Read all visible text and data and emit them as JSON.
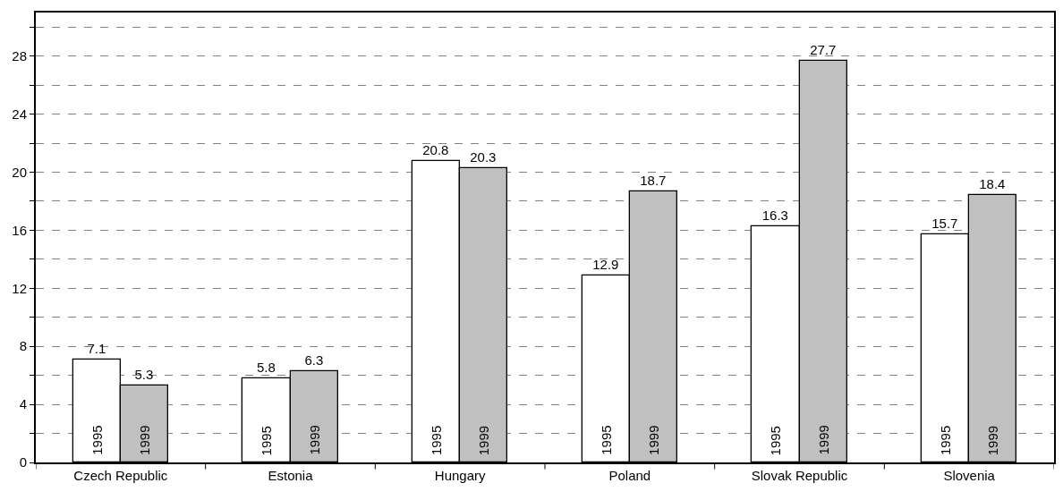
{
  "chart_data": {
    "type": "bar",
    "categories": [
      "Czech Republic",
      "Estonia",
      "Hungary",
      "Poland",
      "Slovak Republic",
      "Slovenia"
    ],
    "series": [
      {
        "name": "1995",
        "color": "#ffffff",
        "values": [
          7.1,
          5.8,
          20.8,
          12.9,
          16.3,
          15.7
        ]
      },
      {
        "name": "1999",
        "color": "#c0c0c0",
        "values": [
          5.3,
          6.3,
          20.3,
          18.7,
          27.7,
          18.4
        ]
      }
    ],
    "ylim": [
      0,
      31
    ],
    "yticks": [
      0,
      {
        "value": 2,
        "label": null
      },
      4,
      {
        "value": 6,
        "label": null
      },
      8,
      {
        "value": 10,
        "label": null
      },
      12,
      {
        "value": 14,
        "label": null
      },
      16,
      {
        "value": 18,
        "label": null
      },
      20,
      {
        "value": 22,
        "label": null
      },
      24,
      {
        "value": 26,
        "label": null
      },
      28,
      {
        "value": 30,
        "label": null
      }
    ],
    "grid": "y",
    "legend": false,
    "data_labels": true
  }
}
